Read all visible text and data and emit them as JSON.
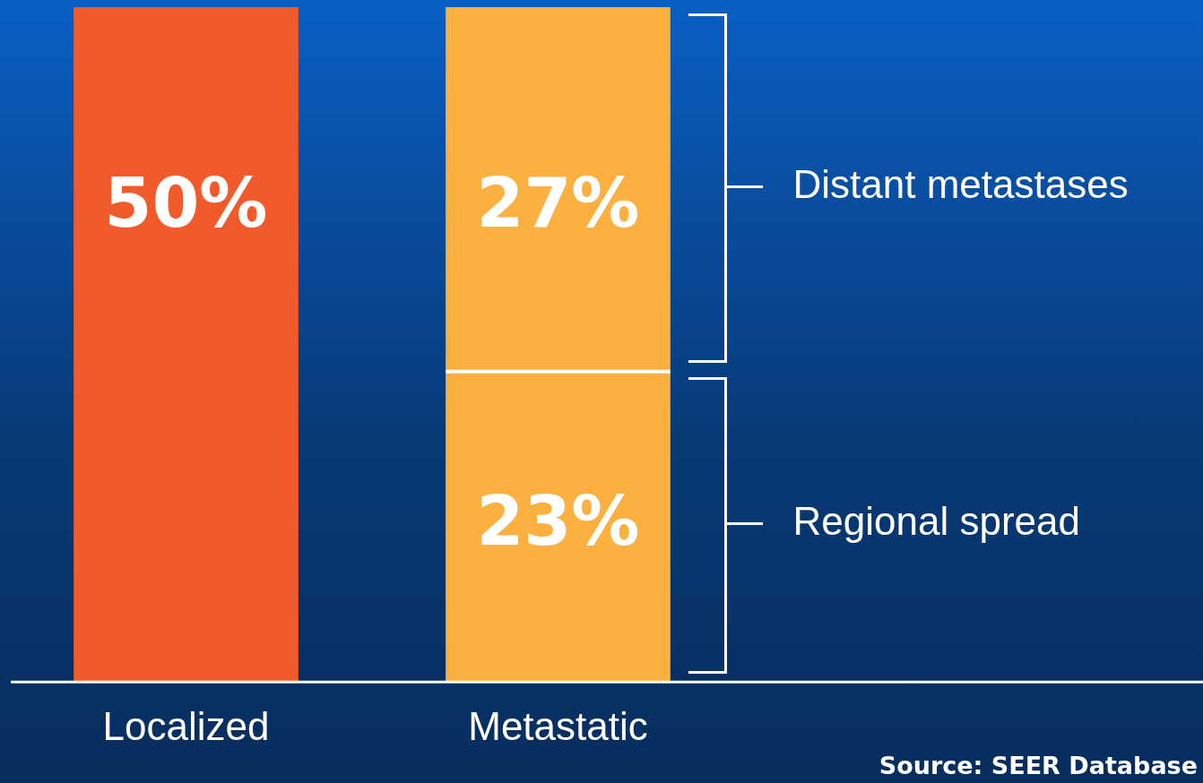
{
  "chart_data": {
    "type": "bar",
    "stacked": true,
    "categories": [
      "Localized",
      "Metastatic"
    ],
    "series": [
      {
        "color": "#f15a2b",
        "values": [
          50,
          null
        ],
        "value_labels": [
          "50%",
          null
        ]
      },
      {
        "name": "Regional spread",
        "color": "#fbb040",
        "values": [
          null,
          23
        ],
        "value_labels": [
          null,
          "23%"
        ]
      },
      {
        "name": "Distant metastases",
        "color": "#fbb040",
        "values": [
          null,
          27
        ],
        "value_labels": [
          null,
          "27%"
        ]
      }
    ],
    "legend": false,
    "grid": false,
    "annotations": [
      "Source: SEER Database"
    ]
  }
}
